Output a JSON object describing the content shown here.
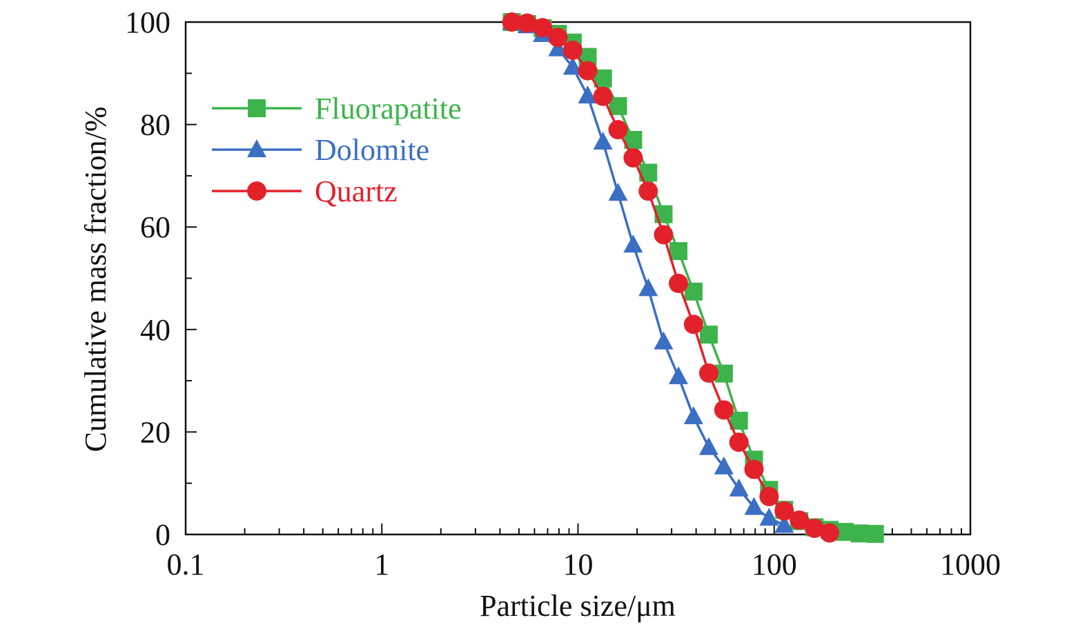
{
  "chart_data": {
    "type": "line",
    "xlabel": "Particle size/μm",
    "ylabel": "Cumulative mass fraction/%",
    "xscale": "log",
    "xlim": [
      0.1,
      1000
    ],
    "ylim": [
      0,
      100
    ],
    "xticks": [
      0.1,
      1,
      10,
      100,
      1000
    ],
    "xtick_labels": [
      "0.1",
      "1",
      "10",
      "100",
      "1000"
    ],
    "yticks": [
      0,
      20,
      40,
      60,
      80,
      100
    ],
    "ytick_labels": [
      "0",
      "20",
      "40",
      "60",
      "80",
      "100"
    ],
    "grid": false,
    "legend_position": "top-left",
    "series": [
      {
        "name": "Fluorapatite",
        "color": "#3cb44b",
        "marker": "square",
        "x": [
          4.6,
          5.5,
          6.6,
          7.9,
          9.4,
          11.2,
          13.4,
          16.0,
          19.1,
          22.8,
          27.3,
          32.5,
          38.8,
          46.4,
          55.4,
          66.1,
          78.9,
          94.2,
          112.5,
          134.3,
          160.4,
          191.5,
          228.7,
          273.1,
          326.1
        ],
        "y": [
          100,
          99.6,
          98.8,
          97.7,
          96.0,
          93.2,
          89.0,
          83.6,
          77.0,
          70.6,
          62.5,
          55.3,
          47.4,
          39.0,
          31.4,
          22.2,
          14.6,
          8.7,
          4.8,
          2.6,
          1.4,
          0.9,
          0.5,
          0.2,
          0.1
        ]
      },
      {
        "name": "Dolomite",
        "color": "#3a6fc4",
        "marker": "triangle",
        "x": [
          4.6,
          5.5,
          6.6,
          7.9,
          9.4,
          11.2,
          13.4,
          16.0,
          19.1,
          22.8,
          27.3,
          32.5,
          38.8,
          46.4,
          55.4,
          66.1,
          78.9,
          94.2,
          112.5
        ],
        "y": [
          100,
          99.3,
          97.6,
          94.8,
          91.2,
          85.6,
          76.6,
          66.6,
          56.5,
          48.0,
          37.6,
          30.8,
          23.0,
          17.0,
          13.2,
          8.9,
          5.3,
          3.2,
          1.8
        ]
      },
      {
        "name": "Quartz",
        "color": "#e3212b",
        "marker": "circle",
        "x": [
          4.6,
          5.5,
          6.6,
          7.9,
          9.4,
          11.2,
          13.4,
          16.0,
          19.1,
          22.8,
          27.3,
          32.5,
          38.8,
          46.4,
          55.4,
          66.1,
          78.9,
          94.2,
          112.5,
          134.3,
          160.4,
          191.5
        ],
        "y": [
          100,
          99.8,
          98.9,
          97.0,
          94.5,
          90.5,
          85.5,
          79.0,
          73.5,
          67.0,
          58.5,
          49.0,
          41.0,
          31.5,
          24.3,
          18.0,
          12.7,
          7.4,
          4.6,
          2.8,
          1.2,
          0.3
        ]
      }
    ]
  }
}
